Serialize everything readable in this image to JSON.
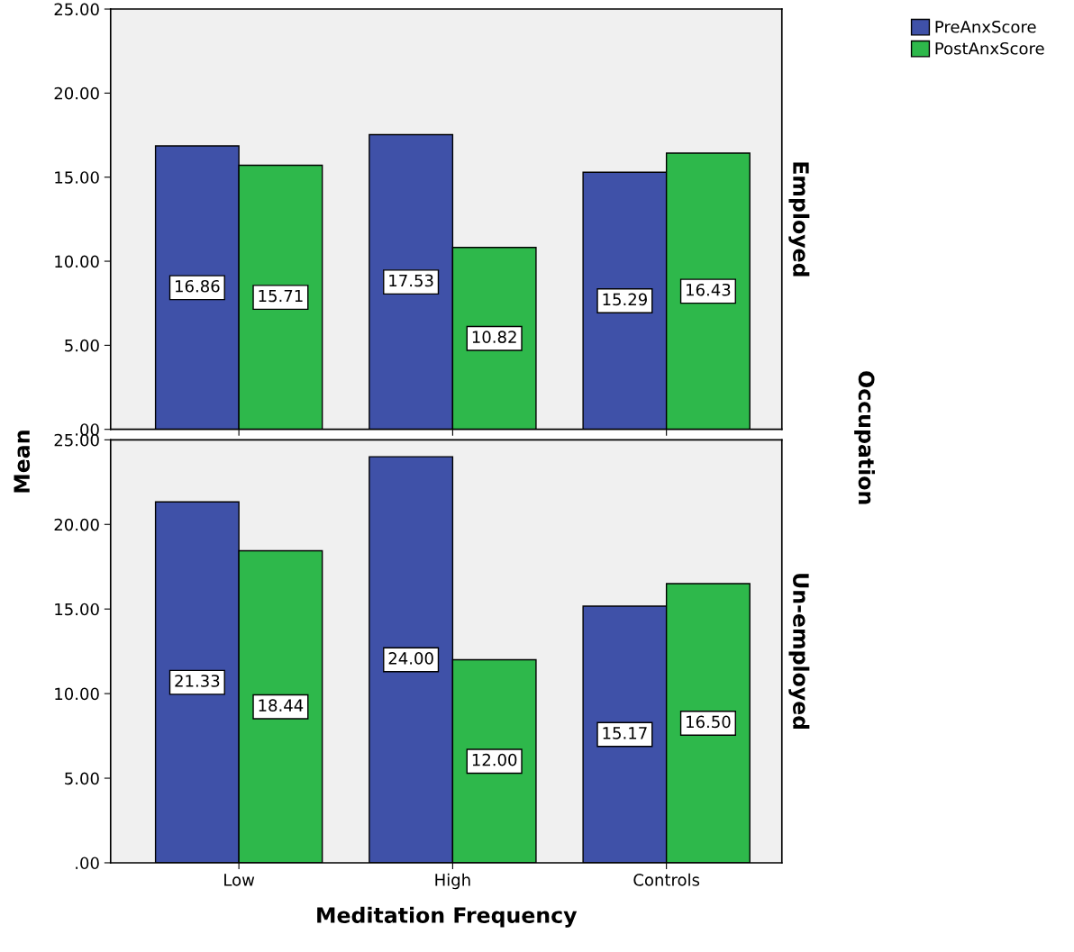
{
  "chart_data": [
    {
      "type": "bar",
      "title": "Employed",
      "ylabel": "Mean",
      "annotations": [
        "Occupation"
      ],
      "categories": [
        null,
        null,
        null
      ],
      "series": [
        {
          "name": "PreAnxScore",
          "color": "#3f51a8",
          "values": [
            16.86,
            17.53,
            15.29
          ],
          "value_labels": [
            "16.86",
            "17.53",
            "15.29"
          ]
        },
        {
          "name": "PostAnxScore",
          "color": "#2eb84b",
          "values": [
            15.71,
            10.82,
            16.43
          ],
          "value_labels": [
            "15.71",
            "10.82",
            "16.43"
          ]
        }
      ],
      "ylim": [
        0,
        25
      ],
      "yticks": [
        {
          "value": 0,
          "label": ".00"
        },
        {
          "value": 5,
          "label": "5.00"
        },
        {
          "value": 10,
          "label": "10.00"
        },
        {
          "value": 15,
          "label": "15.00"
        },
        {
          "value": 20,
          "label": "20.00"
        },
        {
          "value": 25,
          "label": "25.00"
        }
      ],
      "legend": "top right",
      "tick_labels": "y"
    },
    {
      "type": "bar",
      "title": "Un-employed",
      "xlabel": "Meditation Frequency",
      "categories": [
        "Low",
        "High",
        "Controls"
      ],
      "series": [
        {
          "color": "#3f51a8",
          "values": [
            21.33,
            24.0,
            15.17
          ],
          "value_labels": [
            "21.33",
            "24.00",
            "15.17"
          ]
        },
        {
          "color": "#2eb84b",
          "values": [
            18.44,
            12.0,
            16.5
          ],
          "value_labels": [
            "18.44",
            "12.00",
            "16.50"
          ]
        }
      ],
      "ylim": [
        0,
        25
      ],
      "yticks": [
        {
          "value": 0,
          "label": ".00"
        },
        {
          "value": 5,
          "label": "5.00"
        },
        {
          "value": 10,
          "label": "10.00"
        },
        {
          "value": 15,
          "label": "15.00"
        },
        {
          "value": 20,
          "label": "20.00"
        },
        {
          "value": 25,
          "label": "25.00"
        }
      ],
      "tick_labels": true
    }
  ]
}
